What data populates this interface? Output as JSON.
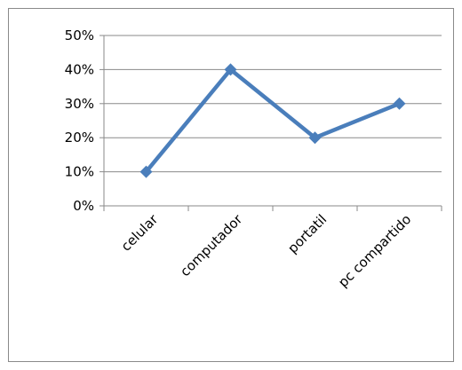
{
  "chart_data": {
    "type": "line",
    "categories": [
      "celular",
      "computador",
      "portatil",
      "pc compartido"
    ],
    "series": [
      {
        "values": [
          0.1,
          0.4,
          0.2,
          0.3
        ]
      }
    ],
    "y_ticks": [
      "0%",
      "10%",
      "20%",
      "30%",
      "40%",
      "50%"
    ],
    "ylim": [
      0,
      0.5
    ],
    "grid": true,
    "legend": "none",
    "colors": {
      "series": "#4a7ebb",
      "grid": "#8a8a8a",
      "axis": "#8a8a8a"
    }
  }
}
